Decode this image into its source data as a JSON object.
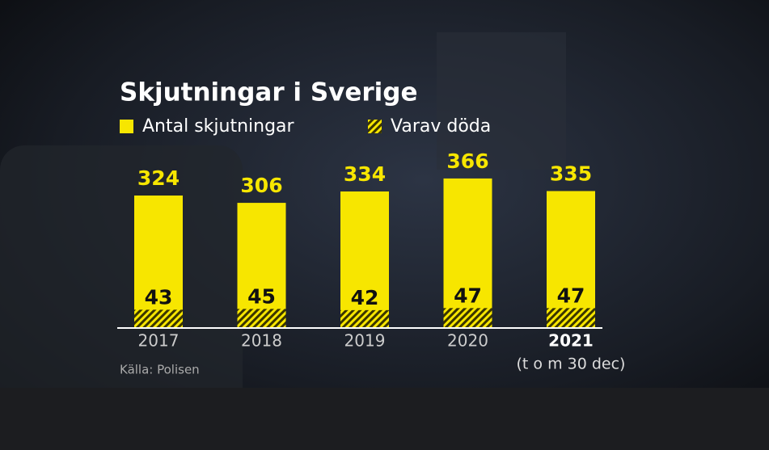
{
  "chart_data": {
    "type": "bar",
    "title": "Skjutningar i Sverige",
    "categories": [
      "2017",
      "2018",
      "2019",
      "2020",
      "2021"
    ],
    "series": [
      {
        "name": "Antal skjutningar",
        "color": "#f7e600",
        "values": [
          324,
          306,
          334,
          366,
          335
        ]
      },
      {
        "name": "Varav döda",
        "color": "#f7e600",
        "values": [
          43,
          45,
          42,
          47,
          47
        ]
      }
    ],
    "source": "Källa: Polisen",
    "note": "(t o m 30 dec)"
  }
}
